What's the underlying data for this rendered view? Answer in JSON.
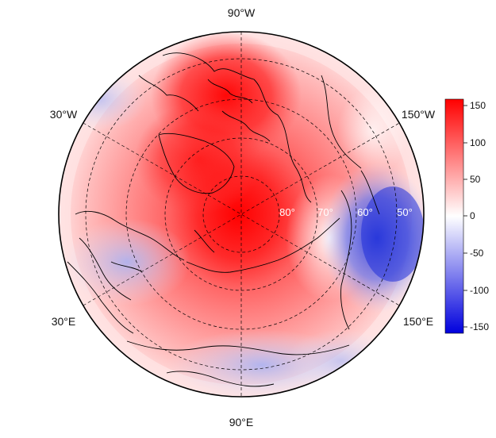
{
  "map": {
    "projection": "north-polar-stereographic",
    "longitude_labels": [
      "90°W",
      "30°W",
      "150°W",
      "30°E",
      "150°E",
      "90°E"
    ],
    "latitude_labels": [
      "80°",
      "70°",
      "60°",
      "50°"
    ],
    "colors": {
      "positive": "#ff0000",
      "zero": "#ffffff",
      "negative": "#0000ff",
      "coast": "#000000",
      "grid": "#000000"
    }
  },
  "colorbar": {
    "range": [
      -160,
      160
    ],
    "ticks": [
      "150",
      "100",
      "50",
      "0",
      "-50",
      "-100",
      "-150"
    ],
    "colormap": "blue-white-red"
  }
}
